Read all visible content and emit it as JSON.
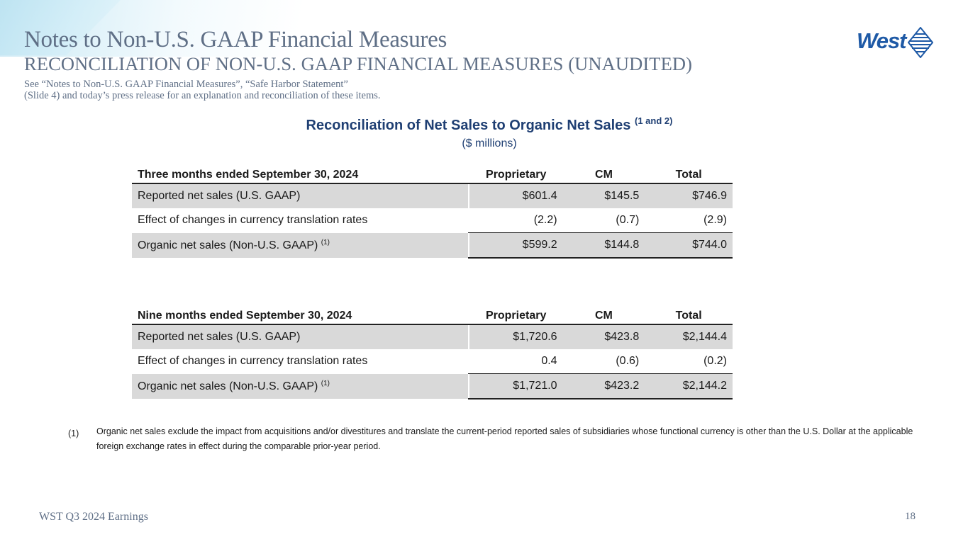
{
  "header": {
    "title": "Notes to Non-U.S. GAAP Financial Measures",
    "subtitle": "RECONCILIATION OF NON-U.S. GAAP FINANCIAL MEASURES (UNAUDITED)",
    "note_line1": "See “Notes to Non-U.S. GAAP Financial Measures”, “Safe Harbor Statement”",
    "note_line2": "(Slide 4) and today’s press release for an explanation and reconciliation of these items.",
    "logo_text": "West"
  },
  "section": {
    "title": "Reconciliation of Net Sales to Organic Net Sales",
    "title_sup": "(1 and 2)",
    "units": "($ millions)"
  },
  "table1": {
    "period": "Three months ended September 30, 2024",
    "col_prop": "Proprietary",
    "col_cm": "CM",
    "col_total": "Total",
    "rows": [
      {
        "label": "Reported net sales (U.S. GAAP)",
        "sup": "",
        "prop": "$601.4",
        "cm": "$145.5",
        "total": "$746.9"
      },
      {
        "label": "Effect of changes in currency translation rates",
        "sup": "",
        "prop": "(2.2)",
        "cm": "(0.7)",
        "total": "(2.9)"
      },
      {
        "label": "Organic net sales (Non-U.S. GAAP)",
        "sup": "(1)",
        "prop": "$599.2",
        "cm": "$144.8",
        "total": "$744.0"
      }
    ]
  },
  "table2": {
    "period": "Nine months ended September 30, 2024",
    "col_prop": "Proprietary",
    "col_cm": "CM",
    "col_total": "Total",
    "rows": [
      {
        "label": "Reported net sales (U.S. GAAP)",
        "sup": "",
        "prop": "$1,720.6",
        "cm": "$423.8",
        "total": "$2,144.4"
      },
      {
        "label": "Effect of changes in currency translation rates",
        "sup": "",
        "prop": "0.4",
        "cm": "(0.6)",
        "total": "(0.2)"
      },
      {
        "label": "Organic net sales (Non-U.S. GAAP)",
        "sup": "(1)",
        "prop": "$1,721.0",
        "cm": "$423.2",
        "total": "$2,144.2"
      }
    ]
  },
  "footnote": {
    "marker": "(1)",
    "text": "Organic net sales exclude the impact from acquisitions and/or divestitures and translate the current-period reported sales of subsidiaries whose functional currency is other than the U.S. Dollar at the applicable foreign exchange rates in effect during the comparable prior-year period."
  },
  "footer": {
    "left": "WST Q3 2024 Earnings",
    "page_number": "18"
  },
  "colors": {
    "title_gray": "#5f6f86",
    "section_navy": "#1f3f73",
    "logo_blue": "#1f5aa6",
    "row_shade": "#d9d9d9"
  }
}
